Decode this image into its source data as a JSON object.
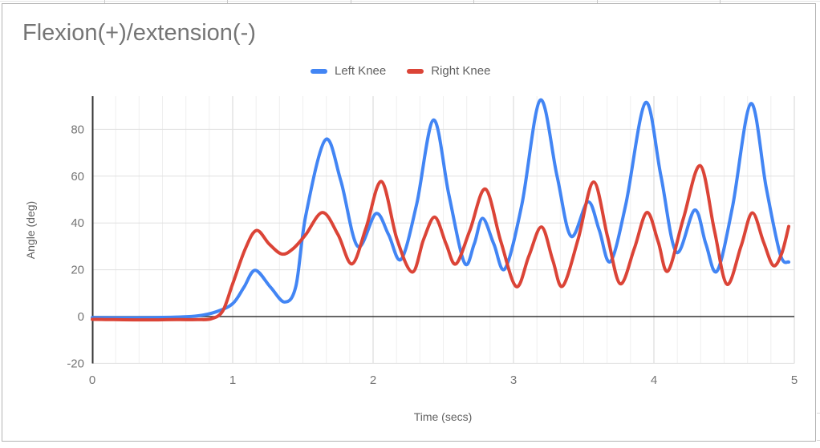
{
  "chart": {
    "background": "#ffffff",
    "border_color": "#b3b3b3",
    "title_color": "#757575",
    "tick_label_color": "#757575",
    "axis_title_color": "#616161",
    "legend_text_color": "#616161",
    "axis_line_color": "#333333",
    "grid_major_color": "#d6d6d6",
    "grid_horizontal_color": "#e0e0e0",
    "grid_minor_color": "#efefef"
  },
  "chart_data": {
    "type": "line",
    "title": "Flexion(+)/extension(-)",
    "xlabel": "Time (secs)",
    "ylabel": "Angle (deg)",
    "xlim": [
      0,
      5
    ],
    "ylim": [
      -20,
      94
    ],
    "x_ticks": [
      0,
      1,
      2,
      3,
      4,
      5
    ],
    "y_ticks": [
      -20,
      0,
      20,
      40,
      60,
      80
    ],
    "x_minor_divisions_per_major": 6,
    "grid": true,
    "legend_position": "top-center",
    "series": [
      {
        "name": "Left Knee",
        "color": "#4285F4",
        "points": [
          [
            0,
            -0.4
          ],
          [
            0.15,
            -0.5
          ],
          [
            0.3,
            -0.5
          ],
          [
            0.45,
            -0.4
          ],
          [
            0.6,
            -0.2
          ],
          [
            0.75,
            0.3
          ],
          [
            0.88,
            2
          ],
          [
            1.0,
            5.5
          ],
          [
            1.08,
            12.5
          ],
          [
            1.16,
            19.8
          ],
          [
            1.27,
            12.5
          ],
          [
            1.37,
            6.2
          ],
          [
            1.45,
            13
          ],
          [
            1.52,
            43
          ],
          [
            1.66,
            75.5
          ],
          [
            1.77,
            58
          ],
          [
            1.89,
            30
          ],
          [
            2.02,
            44
          ],
          [
            2.11,
            35
          ],
          [
            2.2,
            24.5
          ],
          [
            2.31,
            48
          ],
          [
            2.43,
            84
          ],
          [
            2.54,
            52
          ],
          [
            2.65,
            23
          ],
          [
            2.72,
            31
          ],
          [
            2.78,
            42
          ],
          [
            2.86,
            31
          ],
          [
            2.94,
            20.5
          ],
          [
            3.06,
            48
          ],
          [
            3.19,
            92.5
          ],
          [
            3.31,
            60
          ],
          [
            3.41,
            34.3
          ],
          [
            3.53,
            49
          ],
          [
            3.61,
            37
          ],
          [
            3.69,
            23.5
          ],
          [
            3.8,
            48
          ],
          [
            3.94,
            91.4
          ],
          [
            4.05,
            60
          ],
          [
            4.16,
            27.5
          ],
          [
            4.29,
            45.5
          ],
          [
            4.37,
            31
          ],
          [
            4.45,
            19.5
          ],
          [
            4.56,
            47
          ],
          [
            4.69,
            91
          ],
          [
            4.8,
            55
          ],
          [
            4.9,
            26.5
          ],
          [
            4.96,
            23.3
          ]
        ]
      },
      {
        "name": "Right Knee",
        "color": "#DB4437",
        "points": [
          [
            0,
            -1.2
          ],
          [
            0.15,
            -1.3
          ],
          [
            0.3,
            -1.4
          ],
          [
            0.45,
            -1.4
          ],
          [
            0.6,
            -1.3
          ],
          [
            0.75,
            -1.3
          ],
          [
            0.85,
            -0.9
          ],
          [
            0.93,
            2.5
          ],
          [
            1.0,
            14
          ],
          [
            1.09,
            29
          ],
          [
            1.17,
            36.8
          ],
          [
            1.26,
            31
          ],
          [
            1.35,
            26.7
          ],
          [
            1.43,
            29
          ],
          [
            1.52,
            35
          ],
          [
            1.64,
            44.5
          ],
          [
            1.75,
            35
          ],
          [
            1.85,
            22.5
          ],
          [
            1.95,
            38
          ],
          [
            2.06,
            57.7
          ],
          [
            2.17,
            33
          ],
          [
            2.28,
            19
          ],
          [
            2.36,
            33
          ],
          [
            2.44,
            42.5
          ],
          [
            2.52,
            31
          ],
          [
            2.59,
            22.5
          ],
          [
            2.69,
            37
          ],
          [
            2.8,
            54.5
          ],
          [
            2.91,
            32
          ],
          [
            3.02,
            12.8
          ],
          [
            3.11,
            26
          ],
          [
            3.2,
            38.3
          ],
          [
            3.28,
            24
          ],
          [
            3.35,
            13
          ],
          [
            3.46,
            33
          ],
          [
            3.57,
            57.5
          ],
          [
            3.67,
            34
          ],
          [
            3.76,
            14
          ],
          [
            3.86,
            29
          ],
          [
            3.95,
            44.5
          ],
          [
            4.03,
            32
          ],
          [
            4.1,
            19.5
          ],
          [
            4.21,
            42
          ],
          [
            4.33,
            64.5
          ],
          [
            4.43,
            37
          ],
          [
            4.52,
            13.8
          ],
          [
            4.62,
            30
          ],
          [
            4.7,
            44.3
          ],
          [
            4.78,
            32
          ],
          [
            4.85,
            21.8
          ],
          [
            4.91,
            27
          ],
          [
            4.96,
            38.5
          ]
        ]
      }
    ]
  }
}
